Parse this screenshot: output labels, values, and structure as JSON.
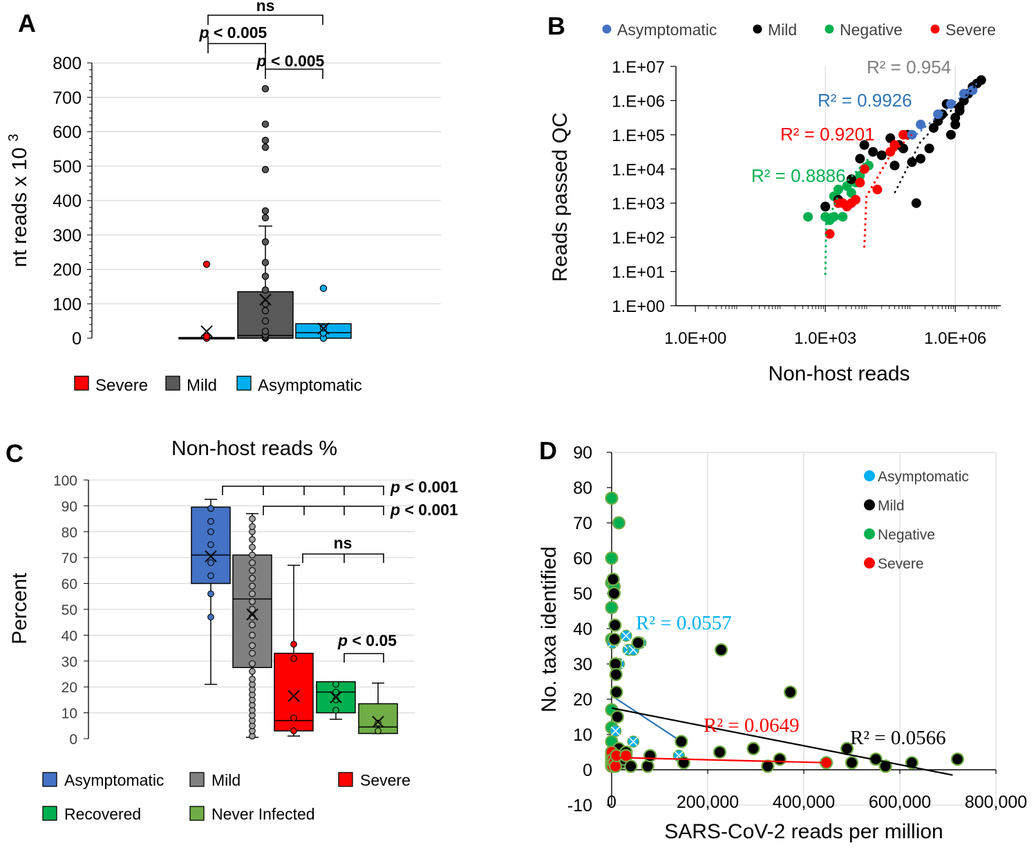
{
  "chart_data": [
    {
      "panel": "A",
      "type": "box",
      "title": "",
      "xlabel": "",
      "ylabel": "nt reads x 10",
      "ylabel_sup": "3",
      "ylim": [
        0,
        800
      ],
      "yticks": [
        0,
        100,
        200,
        300,
        400,
        500,
        600,
        700,
        800
      ],
      "groups": [
        {
          "name": "Severe",
          "color": "#ff0000",
          "q1": 0,
          "median": 0,
          "q3": 2,
          "mean": 20,
          "whisker_low": 0,
          "whisker_high": 2,
          "points": [
            0,
            5,
            215
          ]
        },
        {
          "name": "Mild",
          "color": "#595959",
          "q1": 0,
          "median": 8,
          "q3": 135,
          "mean": 112,
          "whisker_low": 0,
          "whisker_high": 326,
          "points": [
            0,
            2,
            5,
            10,
            20,
            50,
            80,
            100,
            140,
            180,
            220,
            280,
            350,
            370,
            490,
            555,
            575,
            622,
            725
          ]
        },
        {
          "name": "Asymptomatic",
          "color": "#00b0f0",
          "q1": 0,
          "median": 16,
          "q3": 42,
          "mean": 28,
          "whisker_low": 0,
          "whisker_high": 42,
          "points": [
            0,
            15,
            30,
            145
          ]
        }
      ],
      "comparisons": [
        {
          "label": "ns",
          "from": "Severe",
          "to": "Asymptomatic"
        },
        {
          "label": "p < 0.005",
          "from": "Severe",
          "to": "Mild"
        },
        {
          "label": "p < 0.005",
          "from": "Mild",
          "to": "Asymptomatic"
        }
      ],
      "legend": [
        "Severe",
        "Mild",
        "Asymptomatic"
      ]
    },
    {
      "panel": "B",
      "type": "scatter",
      "scale": "log-log",
      "xlabel": "Non-host reads",
      "ylabel": "Reads passed QC",
      "xticks": [
        "1.0E+00",
        "1.0E+03",
        "1.0E+06"
      ],
      "yticks": [
        "1.E+00",
        "1.E+01",
        "1.E+02",
        "1.E+03",
        "1.E+04",
        "1.E+05",
        "1.E+06",
        "1.E+07"
      ],
      "xlim_log10": [
        0,
        7
      ],
      "ylim_log10": [
        0,
        7
      ],
      "series": [
        {
          "name": "Asymptomatic",
          "color": "#4472c4",
          "r2": "R² = 0.9926",
          "r2_color": "#2e75b6",
          "points": [
            [
              5.2,
              5.3
            ],
            [
              5.6,
              5.6
            ],
            [
              5.9,
              5.9
            ],
            [
              6.2,
              6.2
            ],
            [
              6.4,
              6.3
            ],
            [
              5.0,
              5.0
            ]
          ]
        },
        {
          "name": "Mild",
          "color": "#000000",
          "r2": "R² = 0.954",
          "r2_color": "#7f7f7f",
          "points": [
            [
              3.0,
              2.9
            ],
            [
              3.3,
              3.1
            ],
            [
              3.6,
              3.7
            ],
            [
              3.8,
              4.3
            ],
            [
              3.9,
              4.7
            ],
            [
              4.1,
              4.5
            ],
            [
              4.3,
              4.4
            ],
            [
              4.5,
              4.9
            ],
            [
              4.7,
              4.7
            ],
            [
              4.8,
              4.6
            ],
            [
              4.9,
              5.0
            ],
            [
              5.0,
              4.2
            ],
            [
              5.1,
              3.0
            ],
            [
              5.2,
              4.3
            ],
            [
              5.4,
              4.6
            ],
            [
              5.5,
              5.2
            ],
            [
              5.6,
              5.4
            ],
            [
              5.7,
              5.6
            ],
            [
              5.9,
              5.0
            ],
            [
              6.0,
              5.5
            ],
            [
              6.0,
              5.3
            ],
            [
              6.1,
              5.8
            ],
            [
              6.1,
              5.7
            ],
            [
              6.2,
              6.0
            ],
            [
              6.3,
              6.2
            ],
            [
              6.4,
              6.4
            ],
            [
              6.5,
              6.5
            ],
            [
              6.6,
              6.6
            ],
            [
              5.8,
              5.9
            ],
            [
              4.6,
              4.1
            ]
          ]
        },
        {
          "name": "Negative",
          "color": "#00b050",
          "r2": "R² = 0.8886",
          "r2_color": "#00b050",
          "points": [
            [
              2.6,
              2.6
            ],
            [
              3.0,
              2.6
            ],
            [
              3.1,
              2.5
            ],
            [
              3.2,
              2.6
            ],
            [
              3.3,
              3.4
            ],
            [
              3.4,
              2.6
            ],
            [
              3.5,
              3.5
            ],
            [
              3.6,
              3.3
            ],
            [
              3.8,
              3.8
            ],
            [
              4.0,
              4.1
            ],
            [
              3.2,
              3.2
            ],
            [
              3.0,
              2.9
            ],
            [
              3.7,
              3.6
            ]
          ]
        },
        {
          "name": "Severe",
          "color": "#ff0000",
          "r2": "R² = 0.9201",
          "r2_color": "#ff0000",
          "points": [
            [
              3.1,
              2.1
            ],
            [
              3.3,
              3.0
            ],
            [
              3.4,
              3.0
            ],
            [
              3.5,
              2.9
            ],
            [
              3.6,
              3.0
            ],
            [
              3.7,
              3.1
            ],
            [
              3.8,
              3.6
            ],
            [
              3.9,
              4.0
            ],
            [
              4.2,
              3.4
            ],
            [
              4.5,
              4.5
            ],
            [
              4.8,
              5.0
            ],
            [
              4.6,
              4.7
            ]
          ]
        }
      ],
      "legend": [
        "Asymptomatic",
        "Mild",
        "Negative",
        "Severe"
      ]
    },
    {
      "panel": "C",
      "type": "box",
      "title": "Non-host reads %",
      "ylabel": "Percent",
      "ylim": [
        0,
        100
      ],
      "yticks": [
        0,
        10,
        20,
        30,
        40,
        50,
        60,
        70,
        80,
        90,
        100
      ],
      "groups": [
        {
          "name": "Asymptomatic",
          "color": "#4472c4",
          "q1": 60,
          "median": 71,
          "q3": 89.5,
          "mean": 70.5,
          "whisker_low": 21,
          "whisker_high": 92.5,
          "points": [
            47,
            56,
            63,
            68,
            75,
            80,
            84,
            89
          ]
        },
        {
          "name": "Mild",
          "color": "#808080",
          "q1": 27.5,
          "median": 54,
          "q3": 71,
          "mean": 48,
          "whisker_low": 0.5,
          "whisker_high": 87,
          "points": [
            1,
            3,
            5,
            7,
            9,
            11,
            13,
            15,
            17,
            19,
            21,
            23,
            26,
            29,
            33,
            36,
            40,
            44,
            47,
            50,
            53,
            56,
            59,
            62,
            65,
            68,
            71,
            74,
            77,
            80,
            82,
            85
          ]
        },
        {
          "name": "Severe",
          "color": "#ff0000",
          "q1": 3,
          "median": 7,
          "q3": 33,
          "mean": 16.5,
          "whisker_low": 1,
          "whisker_high": 67,
          "points": [
            3,
            8,
            31,
            36.5
          ]
        },
        {
          "name": "Recovered",
          "color": "#00b050",
          "q1": 10,
          "median": 18,
          "q3": 22,
          "mean": 16,
          "whisker_low": 7.5,
          "whisker_high": 22,
          "points": [
            11,
            15,
            18,
            21
          ]
        },
        {
          "name": "Never Infected",
          "color": "#70ad47",
          "q1": 2,
          "median": 4.5,
          "q3": 13.5,
          "mean": 6.5,
          "whisker_low": 2,
          "whisker_high": 21.5,
          "points": [
            3,
            6
          ]
        }
      ],
      "comparisons": [
        {
          "label": "p < 0.001",
          "from": "Asymptomatic",
          "to": "Recovered, Never Infected"
        },
        {
          "label": "p < 0.001",
          "from": "Mild",
          "to": "Recovered, Never Infected"
        },
        {
          "label": "ns",
          "from": "Severe",
          "to": "Recovered, Never Infected"
        },
        {
          "label": "p < 0.05",
          "from": "Recovered",
          "to": "Never Infected"
        }
      ],
      "legend": [
        "Asymptomatic",
        "Mild",
        "Severe",
        "Recovered",
        "Never Infected"
      ]
    },
    {
      "panel": "D",
      "type": "scatter",
      "xlabel": "SARS-CoV-2 reads per million",
      "ylabel": "No. taxa identified",
      "xlim": [
        0,
        800000
      ],
      "ylim": [
        -10,
        90
      ],
      "xticks": [
        "0",
        "200,000",
        "400,000",
        "600,000",
        "800,000"
      ],
      "yticks": [
        "-10",
        "0",
        "10",
        "20",
        "30",
        "40",
        "50",
        "60",
        "70",
        "80",
        "90"
      ],
      "series": [
        {
          "name": "Asymptomatic",
          "color": "#00b0f0",
          "r2": "R² = 0.0557",
          "trend": [
            [
              0,
              21
            ],
            [
              145000,
              8
            ]
          ],
          "points": [
            [
              2000,
              36
            ],
            [
              8000,
              11
            ],
            [
              15000,
              30
            ],
            [
              30000,
              38
            ],
            [
              35000,
              34
            ],
            [
              45000,
              34
            ],
            [
              45000,
              8
            ],
            [
              140000,
              4
            ],
            [
              60000,
              36
            ]
          ]
        },
        {
          "name": "Mild",
          "color": "#000000",
          "r2": "R² = 0.0566",
          "trend": [
            [
              0,
              17.5
            ],
            [
              710000,
              -1.5
            ]
          ],
          "points": [
            [
              0,
              2
            ],
            [
              3000,
              54
            ],
            [
              5000,
              50
            ],
            [
              6000,
              37
            ],
            [
              7000,
              41
            ],
            [
              8000,
              30
            ],
            [
              9000,
              27
            ],
            [
              10000,
              22
            ],
            [
              12000,
              15
            ],
            [
              15000,
              6
            ],
            [
              20000,
              2
            ],
            [
              25000,
              3
            ],
            [
              30000,
              5
            ],
            [
              40000,
              1
            ],
            [
              55000,
              36
            ],
            [
              75000,
              1
            ],
            [
              80000,
              4
            ],
            [
              145000,
              8
            ],
            [
              150000,
              2
            ],
            [
              225000,
              5
            ],
            [
              228000,
              34
            ],
            [
              295000,
              6
            ],
            [
              325000,
              1
            ],
            [
              350000,
              3
            ],
            [
              372000,
              22
            ],
            [
              490000,
              6
            ],
            [
              500000,
              2
            ],
            [
              550000,
              3
            ],
            [
              570000,
              1
            ],
            [
              625000,
              2
            ],
            [
              720000,
              3
            ]
          ]
        },
        {
          "name": "Negative",
          "color": "#00b050",
          "r2": "",
          "trend": null,
          "points": [
            [
              0,
              77
            ],
            [
              0,
              60
            ],
            [
              0,
              46
            ],
            [
              0,
              37
            ],
            [
              0,
              17
            ],
            [
              0,
              12
            ],
            [
              0,
              8
            ],
            [
              0,
              5
            ],
            [
              0,
              2
            ],
            [
              0,
              53
            ],
            [
              5000,
              52
            ],
            [
              15000,
              70
            ]
          ]
        },
        {
          "name": "Severe",
          "color": "#ff0000",
          "r2": "R² = 0.0649",
          "trend": [
            [
              0,
              3.5
            ],
            [
              450000,
              2
            ]
          ],
          "points": [
            [
              0,
              1
            ],
            [
              0,
              2
            ],
            [
              0,
              3
            ],
            [
              0,
              4
            ],
            [
              0,
              5
            ],
            [
              2000,
              1
            ],
            [
              3000,
              3
            ],
            [
              5000,
              2
            ],
            [
              8000,
              1
            ],
            [
              10000,
              4
            ],
            [
              30000,
              4
            ],
            [
              447000,
              2
            ]
          ]
        }
      ],
      "legend": [
        "Asymptomatic",
        "Mild",
        "Negative",
        "Severe"
      ]
    }
  ],
  "panels": {
    "a": {
      "letter": "A",
      "legend": [
        "Severe",
        "Mild",
        "Asymptomatic"
      ]
    },
    "b": {
      "letter": "B"
    },
    "c": {
      "letter": "C",
      "legend": [
        "Asymptomatic",
        "Mild",
        "Severe",
        "Recovered",
        "Never Infected"
      ]
    },
    "d": {
      "letter": "D"
    }
  }
}
